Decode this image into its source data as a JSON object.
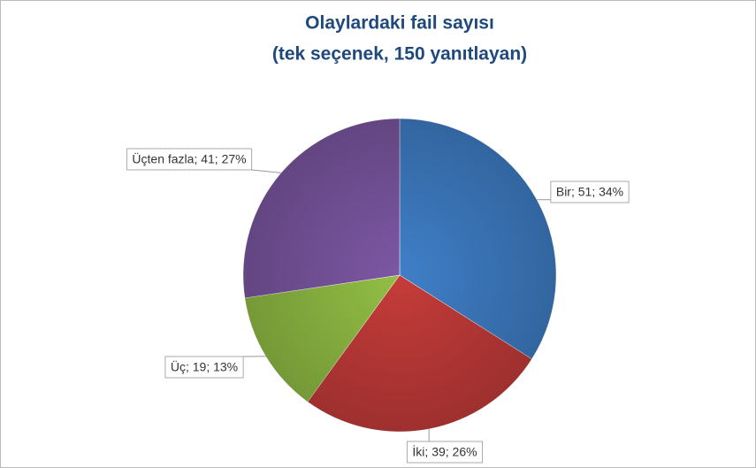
{
  "chart_data": {
    "type": "pie",
    "title": "Olaylardaki fail sayısı",
    "subtitle": "(tek seçenek, 150 yanıtlayan)",
    "categories": [
      "Bir",
      "İki",
      "Üç",
      "Üçten fazla"
    ],
    "values": [
      51,
      39,
      19,
      41
    ],
    "value_labels": [
      "Bir; 51; 34%",
      "İki; 39; 26%",
      "Üç; 19; 13%",
      "Üçten fazla; 41; 27%"
    ],
    "colors": [
      "#3f7fc8",
      "#c53c3a",
      "#92bf45",
      "#7c57a3"
    ]
  }
}
